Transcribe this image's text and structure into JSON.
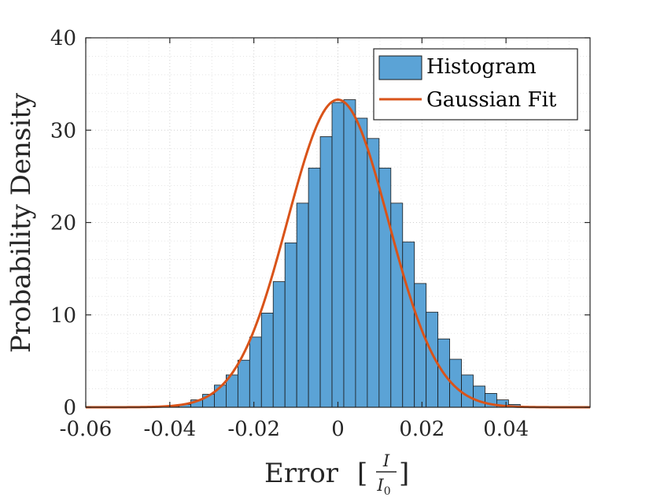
{
  "chart_data": {
    "type": "bar",
    "title": "",
    "xlabel": "Error",
    "xlabel_unit": {
      "numerator": "I",
      "denominator": "I",
      "denominator_sub": "0"
    },
    "ylabel": "Probability Density",
    "xlim": [
      -0.06,
      0.06
    ],
    "ylim": [
      0,
      40
    ],
    "xticks": [
      "-0.06",
      "-0.04",
      "-0.02",
      "0",
      "0.02",
      "0.04"
    ],
    "yticks": [
      "0",
      "10",
      "20",
      "30",
      "40"
    ],
    "grid": "on (major and minor, dotted)",
    "legend_position": "top-right",
    "bin_width": 0.0028,
    "bins": [
      {
        "center": -0.0392,
        "value": 0.1
      },
      {
        "center": -0.0364,
        "value": 0.3
      },
      {
        "center": -0.0336,
        "value": 0.8
      },
      {
        "center": -0.0308,
        "value": 1.4
      },
      {
        "center": -0.028,
        "value": 2.4
      },
      {
        "center": -0.0252,
        "value": 3.5
      },
      {
        "center": -0.0224,
        "value": 5.1
      },
      {
        "center": -0.0196,
        "value": 7.6
      },
      {
        "center": -0.0168,
        "value": 10.2
      },
      {
        "center": -0.014,
        "value": 13.6
      },
      {
        "center": -0.0112,
        "value": 17.8
      },
      {
        "center": -0.0084,
        "value": 22.1
      },
      {
        "center": -0.0056,
        "value": 25.9
      },
      {
        "center": -0.0028,
        "value": 29.3
      },
      {
        "center": 0.0,
        "value": 33.0
      },
      {
        "center": 0.0028,
        "value": 33.3
      },
      {
        "center": 0.0056,
        "value": 31.3
      },
      {
        "center": 0.0084,
        "value": 29.1
      },
      {
        "center": 0.0112,
        "value": 25.9
      },
      {
        "center": 0.014,
        "value": 22.1
      },
      {
        "center": 0.0168,
        "value": 17.9
      },
      {
        "center": 0.0196,
        "value": 13.4
      },
      {
        "center": 0.0224,
        "value": 10.3
      },
      {
        "center": 0.0252,
        "value": 7.4
      },
      {
        "center": 0.028,
        "value": 5.2
      },
      {
        "center": 0.0308,
        "value": 3.5
      },
      {
        "center": 0.0336,
        "value": 2.3
      },
      {
        "center": 0.0364,
        "value": 1.5
      },
      {
        "center": 0.0392,
        "value": 0.8
      },
      {
        "center": 0.042,
        "value": 0.3
      }
    ],
    "series": [
      {
        "name": "Histogram",
        "type": "histogram",
        "color": "#5ba3d6",
        "edge_color": "#1a1a1a"
      },
      {
        "name": "Gaussian Fit",
        "type": "line",
        "color": "#d95319",
        "mean": 0.0,
        "std": 0.012,
        "peak": 33.3
      }
    ]
  }
}
